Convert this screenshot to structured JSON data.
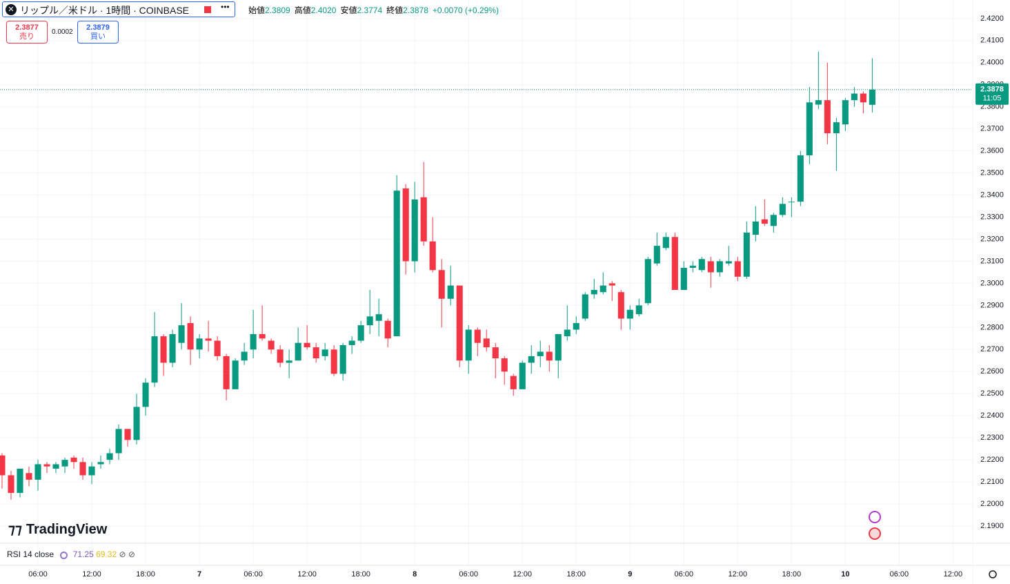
{
  "chart_data": {
    "type": "candlestick",
    "title": "リップル／米ドル · 1時間 · COINBASE",
    "up_color": "#089981",
    "down_color": "#f23645",
    "open": [
      2.222,
      2.213,
      2.205,
      2.214,
      2.211,
      2.218,
      2.216,
      2.217,
      2.221,
      2.219,
      2.213,
      2.218,
      2.22,
      2.223,
      2.234,
      2.229,
      2.244,
      2.255,
      2.276,
      2.264,
      2.273,
      2.282,
      2.27,
      2.275,
      2.274,
      2.267,
      2.252,
      2.265,
      2.27,
      2.277,
      2.274,
      2.27,
      2.264,
      2.265,
      2.273,
      2.271,
      2.267,
      2.27,
      2.259,
      2.272,
      2.274,
      2.281,
      2.283,
      2.283,
      2.276,
      2.343,
      2.31,
      2.339,
      2.319,
      2.306,
      2.293,
      2.299,
      2.265,
      2.279,
      2.275,
      2.271,
      2.266,
      2.258,
      2.252,
      2.264,
      2.267,
      2.269,
      2.265,
      2.276,
      2.279,
      2.284,
      2.295,
      2.296,
      2.3,
      2.296,
      2.284,
      2.286,
      2.291,
      2.309,
      2.316,
      2.321,
      2.297,
      2.307,
      2.306,
      2.31,
      2.305,
      2.309,
      2.31,
      2.303,
      2.322,
      2.329,
      2.326,
      2.331,
      2.337,
      2.337,
      2.358,
      2.381,
      2.383,
      2.368,
      2.372,
      2.383,
      2.386,
      2.3809
    ],
    "high": [
      2.223,
      2.215,
      2.216,
      2.217,
      2.22,
      2.219,
      2.219,
      2.221,
      2.222,
      2.221,
      2.219,
      2.222,
      2.225,
      2.236,
      2.234,
      2.25,
      2.257,
      2.287,
      2.277,
      2.279,
      2.291,
      2.285,
      2.277,
      2.283,
      2.276,
      2.268,
      2.266,
      2.273,
      2.288,
      2.29,
      2.275,
      2.272,
      2.27,
      2.28,
      2.281,
      2.273,
      2.273,
      2.272,
      2.273,
      2.276,
      2.283,
      2.297,
      2.293,
      2.284,
      2.349,
      2.345,
      2.346,
      2.355,
      2.33,
      2.311,
      2.308,
      2.299,
      2.281,
      2.28,
      2.279,
      2.273,
      2.267,
      2.259,
      2.265,
      2.272,
      2.274,
      2.272,
      2.276,
      2.29,
      2.285,
      2.296,
      2.302,
      2.305,
      2.301,
      2.297,
      2.29,
      2.293,
      2.312,
      2.323,
      2.323,
      2.323,
      2.31,
      2.31,
      2.312,
      2.312,
      2.311,
      2.317,
      2.312,
      2.328,
      2.335,
      2.338,
      2.332,
      2.339,
      2.339,
      2.36,
      2.389,
      2.405,
      2.4,
      2.375,
      2.384,
      2.389,
      2.387,
      2.402
    ],
    "low": [
      2.207,
      2.202,
      2.203,
      2.208,
      2.206,
      2.214,
      2.214,
      2.214,
      2.216,
      2.211,
      2.209,
      2.216,
      2.218,
      2.22,
      2.226,
      2.227,
      2.24,
      2.253,
      2.258,
      2.262,
      2.27,
      2.263,
      2.266,
      2.269,
      2.265,
      2.247,
      2.252,
      2.263,
      2.266,
      2.274,
      2.268,
      2.262,
      2.257,
      2.265,
      2.27,
      2.264,
      2.265,
      2.258,
      2.256,
      2.268,
      2.273,
      2.277,
      2.276,
      2.271,
      2.276,
      2.304,
      2.305,
      2.317,
      2.305,
      2.28,
      2.29,
      2.262,
      2.259,
      2.267,
      2.269,
      2.257,
      2.254,
      2.249,
      2.252,
      2.259,
      2.262,
      2.26,
      2.257,
      2.274,
      2.277,
      2.283,
      2.293,
      2.295,
      2.292,
      2.279,
      2.279,
      2.285,
      2.29,
      2.308,
      2.315,
      2.297,
      2.297,
      2.305,
      2.305,
      2.298,
      2.303,
      2.308,
      2.301,
      2.302,
      2.319,
      2.326,
      2.323,
      2.33,
      2.33,
      2.335,
      2.354,
      2.379,
      2.363,
      2.351,
      2.369,
      2.38,
      2.377,
      2.3774
    ],
    "close": [
      2.213,
      2.205,
      2.216,
      2.211,
      2.218,
      2.217,
      2.218,
      2.22,
      2.219,
      2.213,
      2.217,
      2.219,
      2.223,
      2.234,
      2.229,
      2.244,
      2.255,
      2.276,
      2.264,
      2.277,
      2.281,
      2.27,
      2.275,
      2.274,
      2.267,
      2.252,
      2.265,
      2.269,
      2.277,
      2.275,
      2.27,
      2.264,
      2.265,
      2.273,
      2.271,
      2.266,
      2.27,
      2.259,
      2.272,
      2.274,
      2.281,
      2.285,
      2.286,
      2.275,
      2.342,
      2.31,
      2.338,
      2.319,
      2.306,
      2.293,
      2.299,
      2.265,
      2.279,
      2.273,
      2.271,
      2.266,
      2.26,
      2.252,
      2.264,
      2.267,
      2.269,
      2.265,
      2.277,
      2.279,
      2.282,
      2.295,
      2.297,
      2.299,
      2.299,
      2.284,
      2.288,
      2.29,
      2.311,
      2.317,
      2.321,
      2.297,
      2.307,
      2.308,
      2.311,
      2.305,
      2.31,
      2.31,
      2.303,
      2.323,
      2.328,
      2.327,
      2.331,
      2.336,
      2.337,
      2.358,
      2.382,
      2.383,
      2.368,
      2.373,
      2.383,
      2.386,
      2.382,
      2.3878
    ],
    "ylim": [
      2.1825,
      2.4284
    ],
    "yticks": [
      {
        "value": 2.19,
        "label": "2.1900"
      },
      {
        "value": 2.2,
        "label": "2.2000"
      },
      {
        "value": 2.21,
        "label": "2.2100"
      },
      {
        "value": 2.22,
        "label": "2.2200"
      },
      {
        "value": 2.23,
        "label": "2.2300"
      },
      {
        "value": 2.24,
        "label": "2.2400"
      },
      {
        "value": 2.25,
        "label": "2.2500"
      },
      {
        "value": 2.26,
        "label": "2.2600"
      },
      {
        "value": 2.27,
        "label": "2.2700"
      },
      {
        "value": 2.28,
        "label": "2.2800"
      },
      {
        "value": 2.29,
        "label": "2.2900"
      },
      {
        "value": 2.3,
        "label": "2.3000"
      },
      {
        "value": 2.31,
        "label": "2.3100"
      },
      {
        "value": 2.32,
        "label": "2.3200"
      },
      {
        "value": 2.33,
        "label": "2.3300"
      },
      {
        "value": 2.34,
        "label": "2.3400"
      },
      {
        "value": 2.35,
        "label": "2.3500"
      },
      {
        "value": 2.36,
        "label": "2.3600"
      },
      {
        "value": 2.37,
        "label": "2.3700"
      },
      {
        "value": 2.38,
        "label": "2.3800"
      },
      {
        "value": 2.39,
        "label": "2.3900"
      },
      {
        "value": 2.4,
        "label": "2.4000"
      },
      {
        "value": 2.41,
        "label": "2.4100"
      },
      {
        "value": 2.42,
        "label": "2.4200"
      }
    ],
    "xlim": [
      -0.23,
      108.2
    ],
    "xticks": [
      {
        "value": 4,
        "label": "06:00"
      },
      {
        "value": 10,
        "label": "12:00"
      },
      {
        "value": 16,
        "label": "18:00"
      },
      {
        "value": 22,
        "label": "7"
      },
      {
        "value": 28,
        "label": "06:00"
      },
      {
        "value": 34,
        "label": "12:00"
      },
      {
        "value": 40,
        "label": "18:00"
      },
      {
        "value": 46,
        "label": "8"
      },
      {
        "value": 52,
        "label": "06:00"
      },
      {
        "value": 58,
        "label": "12:00"
      },
      {
        "value": 64,
        "label": "18:00"
      },
      {
        "value": 70,
        "label": "9"
      },
      {
        "value": 76,
        "label": "06:00"
      },
      {
        "value": 82,
        "label": "12:00"
      },
      {
        "value": 88,
        "label": "18:00"
      },
      {
        "value": 94,
        "label": "10"
      },
      {
        "value": 100,
        "label": "06:00"
      },
      {
        "value": 106,
        "label": "12:00"
      }
    ],
    "grid": true
  },
  "ui": {
    "ohlc": [
      {
        "label": "始値",
        "value": "2.3809"
      },
      {
        "label": "高値",
        "value": "2.4020"
      },
      {
        "label": "安値",
        "value": "2.3774"
      },
      {
        "label": "終値",
        "value": "2.3878"
      }
    ],
    "change": "+0.0070 (+0.29%)",
    "sell": {
      "price": "2.3877",
      "label": "売り"
    },
    "spread": "0.0002",
    "buy": {
      "price": "2.3879",
      "label": "買い"
    },
    "price_tag": {
      "price": "2.3878",
      "countdown": "11:05"
    },
    "rsi": {
      "label": "RSI 14 close",
      "value1": "71.25",
      "value2": "69.32"
    },
    "logo": "TradingView"
  }
}
